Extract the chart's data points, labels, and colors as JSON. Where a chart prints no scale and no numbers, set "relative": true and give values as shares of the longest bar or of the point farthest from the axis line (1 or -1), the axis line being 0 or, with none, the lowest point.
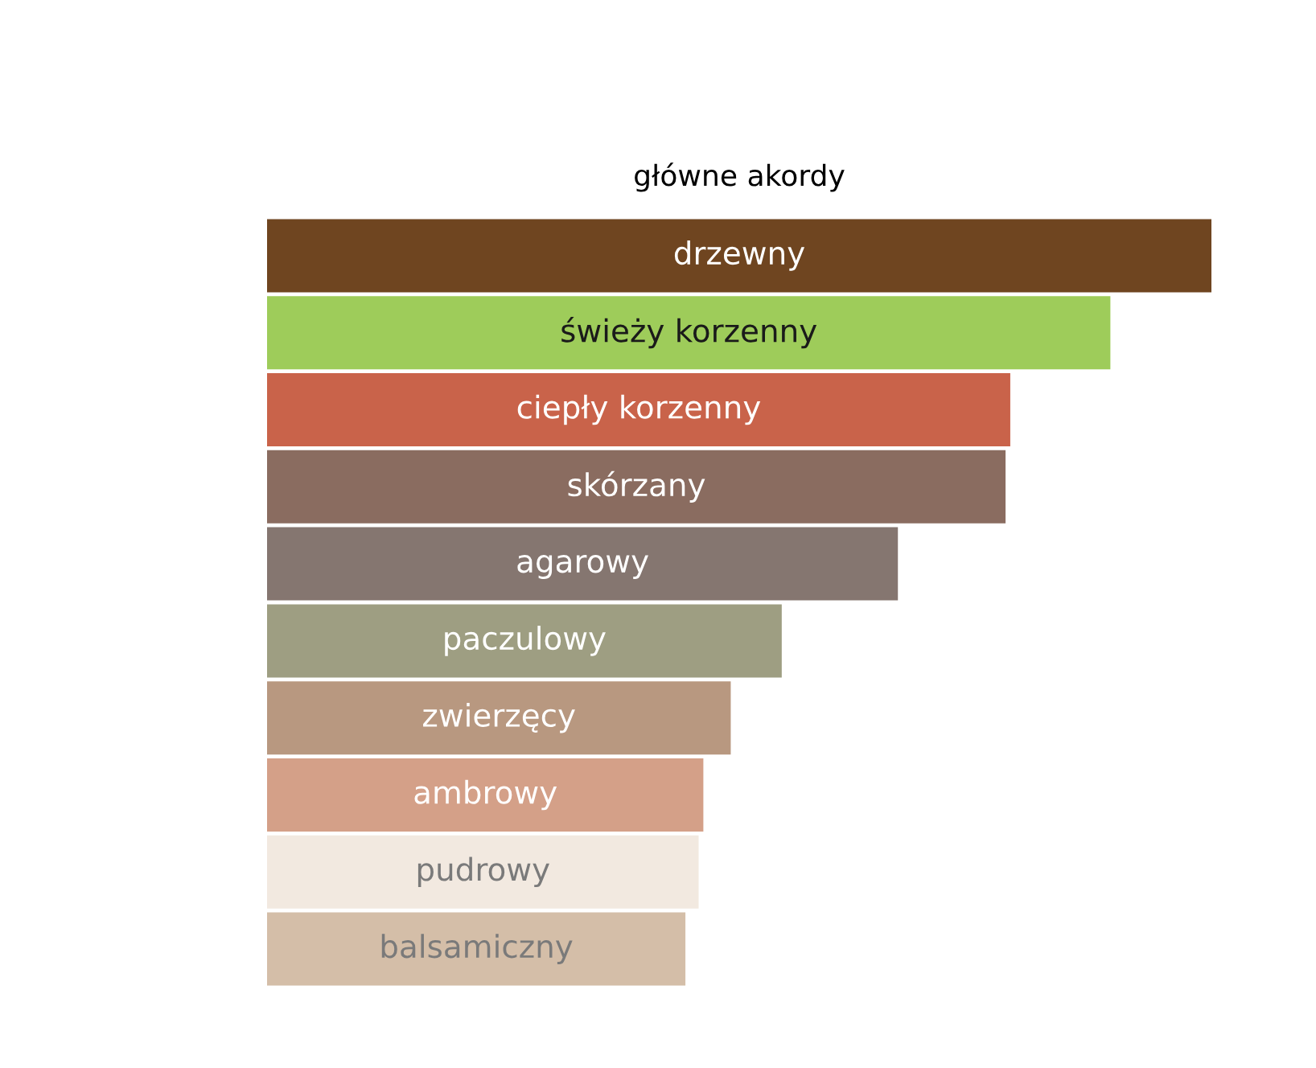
{
  "chart_data": {
    "type": "bar",
    "orientation": "horizontal",
    "relative": true,
    "title": "główne akordy",
    "categories": [
      "drzewny",
      "świeży korzenny",
      "ciepły korzenny",
      "skórzany",
      "agarowy",
      "paczulowy",
      "zwierzęcy",
      "ambrowy",
      "pudrowy",
      "balsamiczny"
    ],
    "values": [
      1,
      0.893,
      0.787,
      0.782,
      0.668,
      0.545,
      0.491,
      0.462,
      0.457,
      0.443
    ],
    "colors": [
      "#6f4520",
      "#9ecc5a",
      "#c9634a",
      "#8a6c60",
      "#857670",
      "#9e9e82",
      "#b89880",
      "#d4a088",
      "#f2e9e0",
      "#d4bea8"
    ]
  }
}
